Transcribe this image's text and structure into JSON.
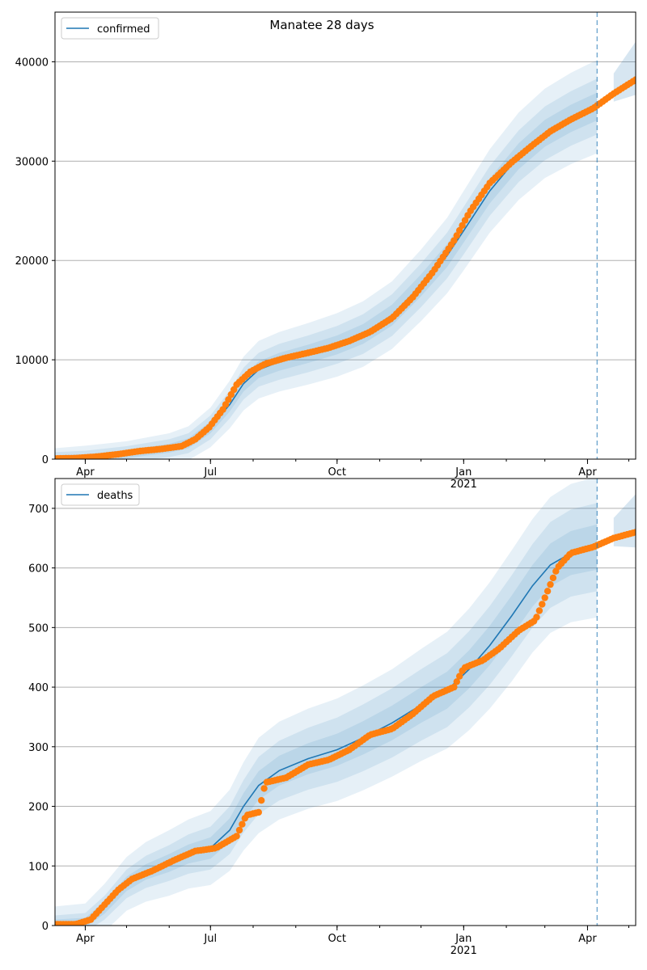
{
  "title": "Manatee 28 days",
  "colors": {
    "model_line": "#1f77b4",
    "observed": "#ff7f0e",
    "band": "#1f77b4",
    "grid": "#b0b0b0",
    "forecast_line": "#1f77b4"
  },
  "chart_data": [
    {
      "type": "line",
      "name": "confirmed-panel",
      "xlabel": "",
      "ylabel": "",
      "xlim": [
        "2020-03-10",
        "2021-05-06"
      ],
      "ylim": [
        0,
        45000
      ],
      "yticks": [
        0,
        10000,
        20000,
        30000,
        40000
      ],
      "ytick_labels": [
        "0",
        "10000",
        "20000",
        "30000",
        "40000"
      ],
      "xticks": [
        "2020-04-01",
        "2020-07-01",
        "2020-10-01",
        "2021-01-01",
        "2021-04-01"
      ],
      "xtick_labels": [
        "Apr",
        "Jul",
        "Oct",
        "Jan\n2021",
        "Apr"
      ],
      "grid": "horizontal",
      "legend": {
        "position": "top-left",
        "entries": [
          "confirmed"
        ]
      },
      "forecast_start": "2021-04-08",
      "series": [
        {
          "name": "confirmed",
          "kind": "model",
          "x": [
            "2020-03-10",
            "2020-04-01",
            "2020-05-01",
            "2020-06-01",
            "2020-06-15",
            "2020-07-01",
            "2020-07-15",
            "2020-07-25",
            "2020-08-05",
            "2020-08-20",
            "2020-09-10",
            "2020-10-01",
            "2020-10-20",
            "2020-11-10",
            "2020-12-01",
            "2020-12-20",
            "2021-01-01",
            "2021-01-20",
            "2021-02-10",
            "2021-03-01",
            "2021-03-20",
            "2021-04-08"
          ],
          "y": [
            100,
            150,
            500,
            1100,
            1600,
            3200,
            5500,
            7600,
            9000,
            9800,
            10600,
            11500,
            12600,
            14500,
            17500,
            20500,
            23000,
            27000,
            30500,
            32800,
            34300,
            35500
          ],
          "band_widths": [
            [
              1000,
              600,
              300
            ],
            [
              1200,
              700,
              350
            ],
            [
              1300,
              800,
              400
            ],
            [
              1500,
              900,
              450
            ],
            [
              1700,
              1000,
              500
            ],
            [
              2000,
              1200,
              600
            ],
            [
              2400,
              1400,
              700
            ],
            [
              2700,
              1600,
              800
            ],
            [
              2900,
              1700,
              850
            ],
            [
              3000,
              1800,
              900
            ],
            [
              3100,
              1850,
              920
            ],
            [
              3200,
              1900,
              950
            ],
            [
              3300,
              2000,
              1000
            ],
            [
              3400,
              2100,
              1050
            ],
            [
              3600,
              2200,
              1100
            ],
            [
              3800,
              2300,
              1150
            ],
            [
              4000,
              2400,
              1200
            ],
            [
              4200,
              2500,
              1250
            ],
            [
              4400,
              2600,
              1300
            ],
            [
              4500,
              2700,
              1350
            ],
            [
              4600,
              2750,
              1380
            ],
            [
              4700,
              2800,
              1400
            ]
          ]
        },
        {
          "name": "observed-confirmed",
          "kind": "observed",
          "x": [
            "2020-03-10",
            "2020-03-25",
            "2020-04-10",
            "2020-04-25",
            "2020-05-10",
            "2020-05-25",
            "2020-06-10",
            "2020-06-20",
            "2020-06-30",
            "2020-07-10",
            "2020-07-20",
            "2020-07-30",
            "2020-08-10",
            "2020-08-25",
            "2020-09-10",
            "2020-09-25",
            "2020-10-10",
            "2020-10-25",
            "2020-11-10",
            "2020-11-25",
            "2020-12-10",
            "2020-12-25",
            "2021-01-05",
            "2021-01-20",
            "2021-02-05",
            "2021-02-20",
            "2021-03-05",
            "2021-03-20",
            "2021-04-05",
            "2021-04-20",
            "2021-05-06"
          ],
          "y": [
            60,
            100,
            250,
            500,
            800,
            1000,
            1300,
            2000,
            3200,
            5000,
            7500,
            8800,
            9600,
            10200,
            10700,
            11200,
            11900,
            12800,
            14200,
            16300,
            18900,
            22000,
            24800,
            27800,
            29900,
            31600,
            33000,
            34200,
            35300,
            36800,
            38200
          ]
        }
      ]
    },
    {
      "type": "line",
      "name": "deaths-panel",
      "xlabel": "",
      "ylabel": "",
      "xlim": [
        "2020-03-10",
        "2021-05-06"
      ],
      "ylim": [
        0,
        750
      ],
      "yticks": [
        0,
        100,
        200,
        300,
        400,
        500,
        600,
        700
      ],
      "ytick_labels": [
        "0",
        "100",
        "200",
        "300",
        "400",
        "500",
        "600",
        "700"
      ],
      "xticks": [
        "2020-04-01",
        "2020-07-01",
        "2020-10-01",
        "2021-01-01",
        "2021-04-01"
      ],
      "xtick_labels": [
        "Apr",
        "Jul",
        "Oct",
        "Jan\n2021",
        "Apr"
      ],
      "grid": "horizontal",
      "legend": {
        "position": "top-left",
        "entries": [
          "deaths"
        ]
      },
      "forecast_start": "2021-04-08",
      "series": [
        {
          "name": "deaths",
          "kind": "model",
          "x": [
            "2020-03-10",
            "2020-04-01",
            "2020-04-15",
            "2020-05-01",
            "2020-05-15",
            "2020-06-01",
            "2020-06-15",
            "2020-07-01",
            "2020-07-15",
            "2020-07-25",
            "2020-08-05",
            "2020-08-20",
            "2020-09-10",
            "2020-10-01",
            "2020-10-20",
            "2020-11-10",
            "2020-12-01",
            "2020-12-20",
            "2021-01-05",
            "2021-01-20",
            "2021-02-05",
            "2021-02-20",
            "2021-03-05",
            "2021-03-20",
            "2021-04-08"
          ],
          "y": [
            2,
            5,
            30,
            70,
            90,
            105,
            120,
            130,
            160,
            200,
            235,
            260,
            280,
            295,
            315,
            340,
            370,
            395,
            430,
            470,
            520,
            570,
            605,
            625,
            635
          ],
          "band_widths": [
            [
              30,
              15,
              8
            ],
            [
              32,
              16,
              8
            ],
            [
              40,
              20,
              10
            ],
            [
              45,
              24,
              12
            ],
            [
              50,
              27,
              13
            ],
            [
              55,
              30,
              15
            ],
            [
              58,
              33,
              16
            ],
            [
              62,
              36,
              18
            ],
            [
              68,
              40,
              20
            ],
            [
              74,
              44,
              22
            ],
            [
              80,
              48,
              24
            ],
            [
              82,
              50,
              25
            ],
            [
              84,
              52,
              26
            ],
            [
              86,
              54,
              27
            ],
            [
              88,
              56,
              28
            ],
            [
              90,
              58,
              29
            ],
            [
              94,
              60,
              30
            ],
            [
              98,
              62,
              31
            ],
            [
              102,
              64,
              32
            ],
            [
              106,
              66,
              33
            ],
            [
              110,
              68,
              34
            ],
            [
              112,
              70,
              35
            ],
            [
              114,
              72,
              36
            ],
            [
              116,
              73,
              37
            ],
            [
              118,
              74,
              38
            ]
          ]
        },
        {
          "name": "observed-deaths",
          "kind": "observed",
          "x": [
            "2020-03-10",
            "2020-03-25",
            "2020-04-05",
            "2020-04-15",
            "2020-04-25",
            "2020-05-05",
            "2020-05-20",
            "2020-06-05",
            "2020-06-20",
            "2020-07-05",
            "2020-07-20",
            "2020-07-27",
            "2020-08-05",
            "2020-08-10",
            "2020-08-25",
            "2020-09-10",
            "2020-09-25",
            "2020-10-10",
            "2020-10-25",
            "2020-11-10",
            "2020-11-25",
            "2020-12-10",
            "2020-12-25",
            "2021-01-01",
            "2021-01-15",
            "2021-01-27",
            "2021-02-10",
            "2021-02-22",
            "2021-03-01",
            "2021-03-10",
            "2021-03-20",
            "2021-04-05",
            "2021-04-20",
            "2021-05-06"
          ],
          "y": [
            2,
            2,
            10,
            35,
            60,
            78,
            92,
            110,
            125,
            130,
            150,
            185,
            190,
            240,
            248,
            270,
            278,
            295,
            320,
            330,
            355,
            385,
            400,
            432,
            445,
            465,
            495,
            512,
            550,
            600,
            625,
            635,
            650,
            660
          ]
        }
      ]
    }
  ]
}
